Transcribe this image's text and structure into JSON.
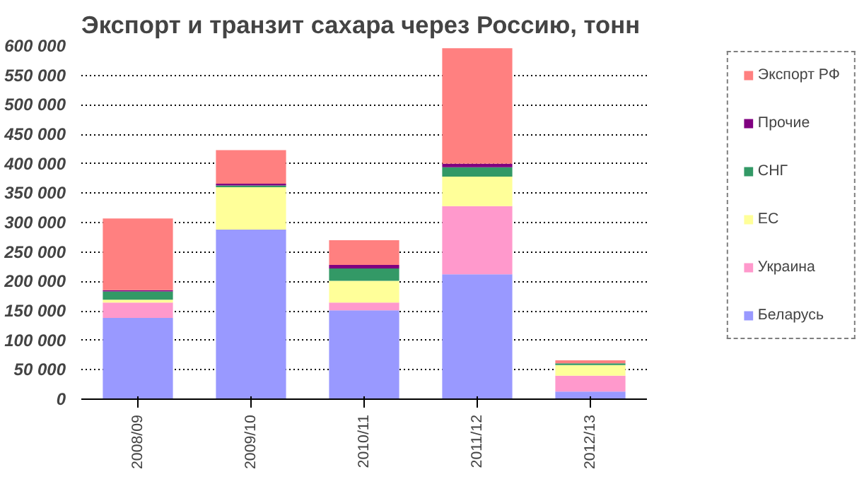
{
  "chart_data": {
    "type": "bar",
    "title": "Экспорт и транзит сахара через Россию, тонн",
    "categories": [
      "2008/09",
      "2009/10",
      "2010/11",
      "2011/12",
      "2012/13"
    ],
    "stacked": true,
    "series": [
      {
        "name": "Беларусь",
        "color": "#9999ff",
        "values": [
          138000,
          288000,
          151000,
          212000,
          13000
        ]
      },
      {
        "name": "Украина",
        "color": "#ff99cc",
        "values": [
          26000,
          0,
          13000,
          116000,
          27000
        ]
      },
      {
        "name": "ЕС",
        "color": "#ffff99",
        "values": [
          5000,
          72000,
          37000,
          50000,
          18000
        ]
      },
      {
        "name": "СНГ",
        "color": "#339966",
        "values": [
          14000,
          3000,
          21000,
          16000,
          3000
        ]
      },
      {
        "name": "Прочие",
        "color": "#800080",
        "values": [
          2000,
          3000,
          6000,
          6000,
          0
        ]
      },
      {
        "name": "Экспорт РФ",
        "color": "#ff8080",
        "values": [
          122000,
          57000,
          42000,
          196000,
          5000
        ]
      }
    ],
    "ylim": [
      0,
      600000
    ],
    "yticks": [
      {
        "value": 0,
        "label": "0"
      },
      {
        "value": 50000,
        "label": "50 000"
      },
      {
        "value": 100000,
        "label": "100 000"
      },
      {
        "value": 150000,
        "label": "150 000"
      },
      {
        "value": 200000,
        "label": "200 000"
      },
      {
        "value": 250000,
        "label": "250 000"
      },
      {
        "value": 300000,
        "label": "300 000"
      },
      {
        "value": 350000,
        "label": "350 000"
      },
      {
        "value": 400000,
        "label": "400 000"
      },
      {
        "value": 450000,
        "label": "450 000"
      },
      {
        "value": 500000,
        "label": "500 000"
      },
      {
        "value": 550000,
        "label": "550 000"
      },
      {
        "value": 600000,
        "label": "600 000"
      }
    ],
    "grid": "y",
    "legend": "right"
  }
}
